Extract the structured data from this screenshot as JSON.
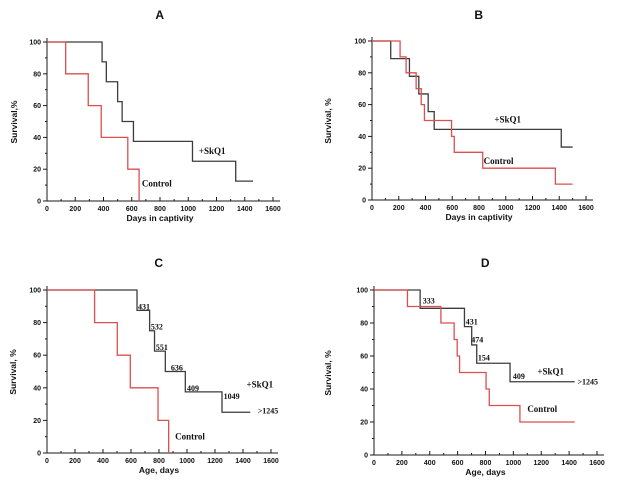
{
  "figure": {
    "background": "#ffffff",
    "panels": [
      "A",
      "B",
      "C",
      "D"
    ]
  },
  "colors": {
    "skq1_line": "#3c3c3c",
    "control_line": "#dc4f4f",
    "text": "#000000",
    "axis": "#1a1a1a"
  },
  "chart_data": [
    {
      "type": "line",
      "subtype": "kaplan-meier-step",
      "panel": "A",
      "title": "A",
      "xlabel": "Days in captivity",
      "ylabel": "Survival,%",
      "xlim": [
        0,
        1600
      ],
      "ylim": [
        0,
        100
      ],
      "xtick_step": 200,
      "ytick_step": 20,
      "x_minor_step": 100,
      "y_minor_step": 10,
      "grid": false,
      "legend_position": "inline-labels",
      "series": [
        {
          "name": "+SkQ1",
          "color": "black",
          "start_y": 100,
          "drops": [
            [
              390,
              87.5
            ],
            [
              420,
              75
            ],
            [
              500,
              62.5
            ],
            [
              532,
              50
            ],
            [
              612,
              37.5
            ],
            [
              1030,
              25
            ],
            [
              1336,
              12.5
            ]
          ],
          "end_x": 1459,
          "label": {
            "text": "+SkQ1",
            "x": 1075,
            "y": 31.5
          }
        },
        {
          "name": "Control",
          "color": "red",
          "start_y": 100,
          "drops": [
            [
              132,
              80
            ],
            [
              292,
              60
            ],
            [
              384,
              40
            ],
            [
              572,
              20
            ],
            [
              652,
              0
            ]
          ],
          "end_x": 652,
          "label": {
            "text": "Control",
            "x": 672,
            "y": 11
          }
        }
      ],
      "annotations": []
    },
    {
      "type": "line",
      "subtype": "kaplan-meier-step",
      "panel": "B",
      "title": "B",
      "xlabel": "Days in captivity",
      "ylabel": "Survival, %",
      "xlim": [
        0,
        1600
      ],
      "ylim": [
        0,
        100
      ],
      "xtick_step": 200,
      "ytick_step": 20,
      "x_minor_step": 100,
      "y_minor_step": 10,
      "grid": false,
      "legend_position": "inline-labels",
      "series": [
        {
          "name": "+SkQ1",
          "color": "black",
          "start_y": 100,
          "drops": [
            [
              140,
              88.9
            ],
            [
              280,
              77.8
            ],
            [
              350,
              66.7
            ],
            [
              420,
              55.6
            ],
            [
              465,
              44.4
            ],
            [
              1415,
              33.3
            ]
          ],
          "end_x": 1500,
          "label": {
            "text": "+SkQ1",
            "x": 915,
            "y": 50.5
          }
        },
        {
          "name": "Control",
          "color": "red",
          "start_y": 100,
          "drops": [
            [
              210,
              90
            ],
            [
              255,
              80
            ],
            [
              330,
              70
            ],
            [
              368,
              60
            ],
            [
              392,
              50
            ],
            [
              595,
              40
            ],
            [
              615,
              30
            ],
            [
              828,
              20
            ],
            [
              1371,
              10
            ]
          ],
          "end_x": 1500,
          "label": {
            "text": "Control",
            "x": 835,
            "y": 24.5
          }
        }
      ],
      "annotations": []
    },
    {
      "type": "line",
      "subtype": "kaplan-meier-step",
      "panel": "C",
      "title": "C",
      "xlabel": "Age, days",
      "ylabel": "Survival, %",
      "xlim": [
        0,
        1600
      ],
      "ylim": [
        0,
        100
      ],
      "xtick_step": 200,
      "ytick_step": 20,
      "x_minor_step": 100,
      "y_minor_step": 10,
      "grid": false,
      "legend_position": "inline-labels",
      "series": [
        {
          "name": "+SkQ1",
          "color": "black",
          "start_y": 100,
          "drops": [
            [
              643,
              87.5
            ],
            [
              733,
              75
            ],
            [
              768,
              62.5
            ],
            [
              845,
              50
            ],
            [
              988,
              37.5
            ],
            [
              1250,
              25
            ]
          ],
          "end_x": 1452,
          "label": {
            "text": "+SkQ1",
            "x": 1425,
            "y": 42
          }
        },
        {
          "name": "Control",
          "color": "red",
          "start_y": 100,
          "drops": [
            [
              340,
              80
            ],
            [
              502,
              60
            ],
            [
              595,
              40
            ],
            [
              793,
              20
            ],
            [
              869,
              0
            ]
          ],
          "end_x": 869,
          "label": {
            "text": "Control",
            "x": 915,
            "y": 10
          }
        }
      ],
      "annotations": [
        {
          "text": "431",
          "x": 650,
          "y": 90
        },
        {
          "text": "532",
          "x": 742,
          "y": 77.5
        },
        {
          "text": "551",
          "x": 778,
          "y": 65
        },
        {
          "text": "636",
          "x": 885,
          "y": 52.5
        },
        {
          "text": "409",
          "x": 1000,
          "y": 40
        },
        {
          "text": "1049",
          "x": 1262,
          "y": 35
        },
        {
          "text": ">1245",
          "x": 1505,
          "y": 26
        }
      ]
    },
    {
      "type": "line",
      "subtype": "kaplan-meier-step",
      "panel": "D",
      "title": "D",
      "xlabel": "Age, days",
      "ylabel": "Survival, %",
      "xlim": [
        0,
        1600
      ],
      "ylim": [
        0,
        100
      ],
      "xtick_step": 200,
      "ytick_step": 20,
      "x_minor_step": 100,
      "y_minor_step": 10,
      "grid": false,
      "legend_position": "inline-labels",
      "series": [
        {
          "name": "+SkQ1",
          "color": "black",
          "start_y": 100,
          "drops": [
            [
              331,
              88.9
            ],
            [
              649,
              77.8
            ],
            [
              701,
              66.7
            ],
            [
              737,
              55.6
            ],
            [
              976,
              44.4
            ]
          ],
          "end_x": 1440,
          "label": {
            "text": "+SkQ1",
            "x": 1172,
            "y": 50.5
          }
        },
        {
          "name": "Control",
          "color": "red",
          "start_y": 100,
          "drops": [
            [
              240,
              90
            ],
            [
              480,
              80
            ],
            [
              575,
              70
            ],
            [
              597,
              60
            ],
            [
              614,
              50
            ],
            [
              804,
              40
            ],
            [
              827,
              30
            ],
            [
              1047,
              20
            ]
          ],
          "end_x": 1440,
          "label": {
            "text": "Control",
            "x": 1100,
            "y": 28
          }
        }
      ],
      "annotations": [
        {
          "text": "333",
          "x": 350,
          "y": 93.5
        },
        {
          "text": "431",
          "x": 658,
          "y": 81
        },
        {
          "text": "474",
          "x": 698,
          "y": 70
        },
        {
          "text": "154",
          "x": 745,
          "y": 59
        },
        {
          "text": "409",
          "x": 996,
          "y": 48
        },
        {
          "text": ">1245",
          "x": 1460,
          "y": 44.5
        }
      ]
    }
  ]
}
